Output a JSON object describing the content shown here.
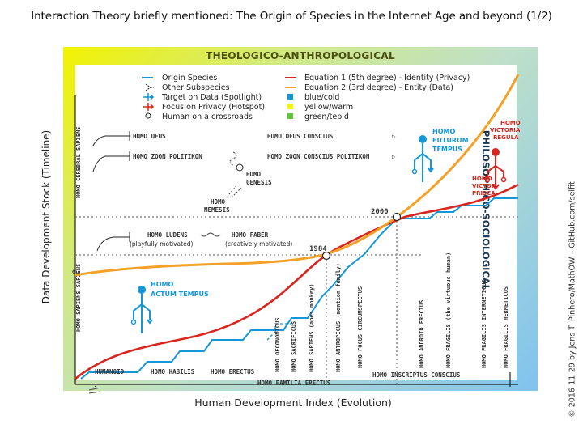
{
  "title": "Interaction Theory briefly mentioned: The Origin of Species in the Internet Age and beyond (1/2)",
  "band_top": "THEOLOGICO-ANTHROPOLOGICAL",
  "band_right": "PHILOSOPHICO-SOCIOLOGICAL",
  "y_axis_label": "Data Development Stock (Timeline)",
  "x_axis_label": "Human Development Index (Evolution)",
  "copyright": "© 2016-11-29 by Jens T. Pinhero/MathOW – GitHub.com/selfit",
  "legend": {
    "origin_species": "Origin Species",
    "other_subspecies": "Other Subspecies",
    "target_on_data": "Target on Data (Spotlight)",
    "focus_on_privacy": "Focus on Privacy (Hotspot)",
    "human_crossroads": "Human on a crossroads",
    "equation1": "Equation 1 (5th degree) - Identity (Privacy)",
    "equation2": "Equation 2 (3rd degree) - Entity (Data)",
    "blue_cold": "blue/cold",
    "yellow_warm": "yellow/warm",
    "green_tepid": "green/tepid"
  },
  "colors": {
    "origin_blue": "#1497d8",
    "equation1_red": "#d8261e",
    "equation2_orange": "#f3a127",
    "yellow": "#f5f500",
    "green": "#5ec43a"
  },
  "years": {
    "y1": "1984",
    "y2": "2000"
  },
  "marker_e": "e",
  "top_species": {
    "deus": "HOMO DEUS",
    "deus_conscius": "HOMO DEUS CONSCIUS",
    "zoon": "HOMO ZOON POLITIKON",
    "zoon_conscius": "HOMO ZOON CONSCIUS POLITIKON",
    "genesis": "HOMO GENESIS",
    "memesis": "HOMO MEMESIS",
    "ludens": "HOMO LUDENS",
    "ludens_note": "(playfully motivated)",
    "faber": "HOMO FABER",
    "faber_note": "(creatively motivated)",
    "cerebral": "HOMO CEREBRAL SAPIENS",
    "sapiens": "HOMO SAPIENS SAPIENS"
  },
  "bottom_species": {
    "humanoid": "HUMANOID",
    "habilis": "HOMO HABILIS",
    "erectus": "HOMO ERECTUS",
    "familia": "HOMO FAMILIA ERECTUS",
    "inscriptus": "HOMO INSCRIPTUS CONSCIUS"
  },
  "vertical_species": [
    "HOMO OECONOMICUS",
    "HOMO SACRIFICUS",
    "HOMO SAPIENS (apes monkey)",
    "HOMO ANTROPICUS (mention family)",
    "HOMO FOCUS CIRCUMSPECTUS",
    "HOMO ANDROID ERECTUS",
    "HOMO FRAGILIS (the virtuous human)",
    "HOMO FRAGILIS INTERNETICUS",
    "HOMO FRAGILIS HERMETICUS"
  ],
  "homo_actum": [
    "HOMO",
    "ACTUM TEMPUS"
  ],
  "homo_futurum": [
    "HOMO",
    "FUTURUM",
    "TEMPUS"
  ],
  "homo_victoria": [
    "HOMO",
    "VICTORIA",
    "REGULA"
  ],
  "homo_victor": [
    "HOMO",
    "VICTOR",
    "PRISCA"
  ]
}
